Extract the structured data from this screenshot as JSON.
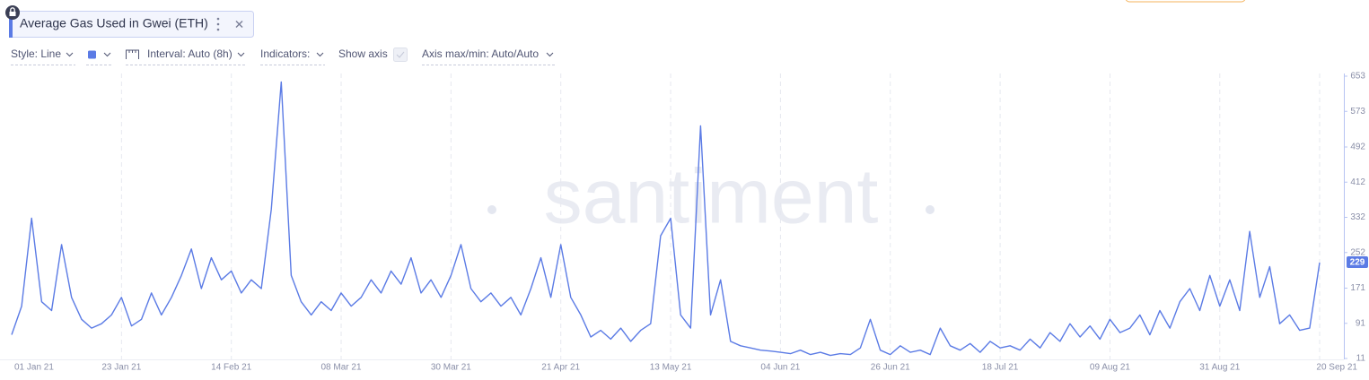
{
  "toolbar": {
    "style": "Style: Line",
    "interval": "Interval: Auto (8h)",
    "indicators": "Indicators:",
    "show_axis": "Show axis",
    "axis_range": "Axis max/min: Auto/Auto"
  },
  "chart_data": {
    "type": "line",
    "title": "Average Gas Used in Gwei (ETH)",
    "watermark": "santiment",
    "xlim": [
      "2021-01-01",
      "2021-09-20"
    ],
    "xticks": [
      {
        "value": "2021-01-01",
        "label": "01 Jan 21"
      },
      {
        "value": "2021-01-23",
        "label": "23 Jan 21"
      },
      {
        "value": "2021-02-14",
        "label": "14 Feb 21"
      },
      {
        "value": "2021-03-08",
        "label": "08 Mar 21"
      },
      {
        "value": "2021-03-30",
        "label": "30 Mar 21"
      },
      {
        "value": "2021-04-21",
        "label": "21 Apr 21"
      },
      {
        "value": "2021-05-13",
        "label": "13 May 21"
      },
      {
        "value": "2021-06-04",
        "label": "04 Jun 21"
      },
      {
        "value": "2021-06-26",
        "label": "26 Jun 21"
      },
      {
        "value": "2021-07-18",
        "label": "18 Jul 21"
      },
      {
        "value": "2021-08-09",
        "label": "09 Aug 21"
      },
      {
        "value": "2021-08-31",
        "label": "31 Aug 21"
      },
      {
        "value": "2021-09-20",
        "label": "20 Sep 21"
      }
    ],
    "ylim": [
      11,
      653
    ],
    "yticks": [
      11,
      91,
      171,
      252,
      332,
      412,
      492,
      573,
      653
    ],
    "grid": true,
    "series": [
      {
        "color": "#5b7be5",
        "values": [
          65,
          130,
          330,
          140,
          120,
          270,
          150,
          100,
          80,
          90,
          110,
          150,
          85,
          100,
          160,
          110,
          150,
          200,
          260,
          170,
          240,
          190,
          210,
          160,
          190,
          170,
          350,
          640,
          200,
          140,
          110,
          140,
          120,
          160,
          130,
          150,
          190,
          160,
          210,
          180,
          240,
          160,
          190,
          150,
          200,
          270,
          170,
          140,
          160,
          130,
          150,
          110,
          170,
          240,
          150,
          270,
          150,
          110,
          60,
          75,
          55,
          80,
          50,
          75,
          90,
          290,
          330,
          110,
          80,
          540,
          110,
          190,
          50,
          40,
          35,
          30,
          28,
          25,
          22,
          30,
          20,
          25,
          18,
          22,
          20,
          35,
          100,
          30,
          20,
          40,
          25,
          30,
          20,
          80,
          40,
          30,
          45,
          25,
          50,
          35,
          40,
          30,
          55,
          35,
          70,
          50,
          90,
          60,
          85,
          55,
          100,
          70,
          80,
          110,
          65,
          120,
          80,
          140,
          170,
          120,
          200,
          130,
          190,
          120,
          300,
          150,
          220,
          90,
          110,
          75,
          80,
          229
        ]
      }
    ]
  }
}
